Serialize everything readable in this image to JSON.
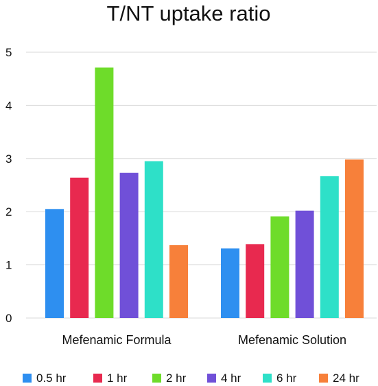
{
  "chart_data": {
    "type": "bar",
    "title": "T/NT uptake ratio",
    "xlabel": "",
    "ylabel": "",
    "categories": [
      "Mefenamic Formula",
      "Mefenamic Solution"
    ],
    "series": [
      {
        "name": "0.5 hr",
        "color": "#2e8ff0",
        "values": [
          2.05,
          1.31
        ]
      },
      {
        "name": "1 hr",
        "color": "#e8294f",
        "values": [
          2.64,
          1.39
        ]
      },
      {
        "name": "2 hr",
        "color": "#6edc2a",
        "values": [
          4.71,
          1.91
        ]
      },
      {
        "name": "4 hr",
        "color": "#7050d8",
        "values": [
          2.73,
          2.02
        ]
      },
      {
        "name": "6 hr",
        "color": "#2ee0c8",
        "values": [
          2.95,
          2.67
        ]
      },
      {
        "name": "24 hr",
        "color": "#f7803a",
        "values": [
          1.37,
          2.98
        ]
      }
    ],
    "ylim": [
      0,
      5
    ],
    "yticks": [
      "0",
      "1",
      "2",
      "3",
      "4",
      "5"
    ],
    "grid": true,
    "legend": "bottom"
  }
}
